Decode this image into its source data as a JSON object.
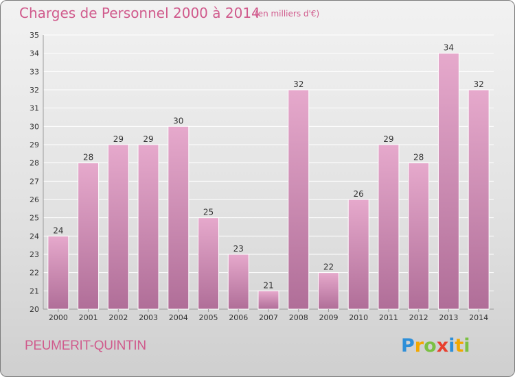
{
  "title": "Charges de Personnel 2000 à 2014",
  "subtitle": "(en milliers d'€)",
  "commune": "PEUMERIT-QUINTIN",
  "logo": {
    "text": "Proxiti",
    "letters": [
      {
        "ch": "P",
        "color": "#2e8fd8"
      },
      {
        "ch": "r",
        "color": "#f2a800"
      },
      {
        "ch": "o",
        "color": "#7bc043"
      },
      {
        "ch": "x",
        "color": "#e8402f"
      },
      {
        "ch": "i",
        "color": "#2e8fd8"
      },
      {
        "ch": "t",
        "color": "#f2a800"
      },
      {
        "ch": "i",
        "color": "#7bc043"
      }
    ]
  },
  "colors": {
    "accent": "#d05a8c",
    "bar_top": "#e6a9cc",
    "bar_bottom": "#b06e98",
    "grid": "#ffffff",
    "text": "#333333"
  },
  "chart_data": {
    "type": "bar",
    "categories": [
      "2000",
      "2001",
      "2002",
      "2003",
      "2004",
      "2005",
      "2006",
      "2007",
      "2008",
      "2009",
      "2010",
      "2011",
      "2012",
      "2013",
      "2014"
    ],
    "values": [
      24,
      28,
      29,
      29,
      30,
      25,
      23,
      21,
      32,
      22,
      26,
      29,
      28,
      34,
      32
    ],
    "ylim": [
      20,
      35
    ],
    "yticks": [
      20,
      21,
      22,
      23,
      24,
      25,
      26,
      27,
      28,
      29,
      30,
      31,
      32,
      33,
      34,
      35
    ],
    "grid": true,
    "xlabel": "",
    "ylabel": ""
  }
}
